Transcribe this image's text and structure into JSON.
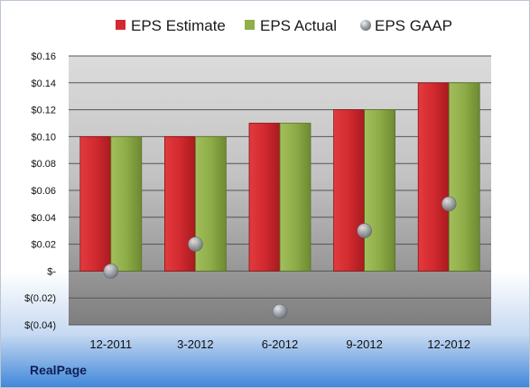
{
  "company": "RealPage",
  "colors": {
    "estimate": "#d42a2f",
    "actual": "#8faf47",
    "gaap": "#9aa0a8"
  },
  "chart_data": {
    "type": "bar",
    "categories": [
      "12-2011",
      "3-2012",
      "6-2012",
      "9-2012",
      "12-2012"
    ],
    "series": [
      {
        "name": "EPS Estimate",
        "kind": "bar",
        "values": [
          0.1,
          0.1,
          0.11,
          0.12,
          0.14
        ]
      },
      {
        "name": "EPS Actual",
        "kind": "bar",
        "values": [
          0.1,
          0.1,
          0.11,
          0.12,
          0.14
        ]
      },
      {
        "name": "EPS GAAP",
        "kind": "marker",
        "values": [
          0.0,
          0.02,
          -0.03,
          0.03,
          0.05
        ]
      }
    ],
    "ylim": [
      -0.04,
      0.16
    ],
    "yticks": [
      {
        "value": 0.16,
        "label": "$0.16"
      },
      {
        "value": 0.14,
        "label": "$0.14"
      },
      {
        "value": 0.12,
        "label": "$0.12"
      },
      {
        "value": 0.1,
        "label": "$0.10"
      },
      {
        "value": 0.08,
        "label": "$0.08"
      },
      {
        "value": 0.06,
        "label": "$0.06"
      },
      {
        "value": 0.04,
        "label": "$0.04"
      },
      {
        "value": 0.02,
        "label": "$0.02"
      },
      {
        "value": 0.0,
        "label": "$-"
      },
      {
        "value": -0.02,
        "label": "$(0.02)"
      },
      {
        "value": -0.04,
        "label": "$(0.04)"
      }
    ],
    "grid": true,
    "legend_position": "top"
  }
}
